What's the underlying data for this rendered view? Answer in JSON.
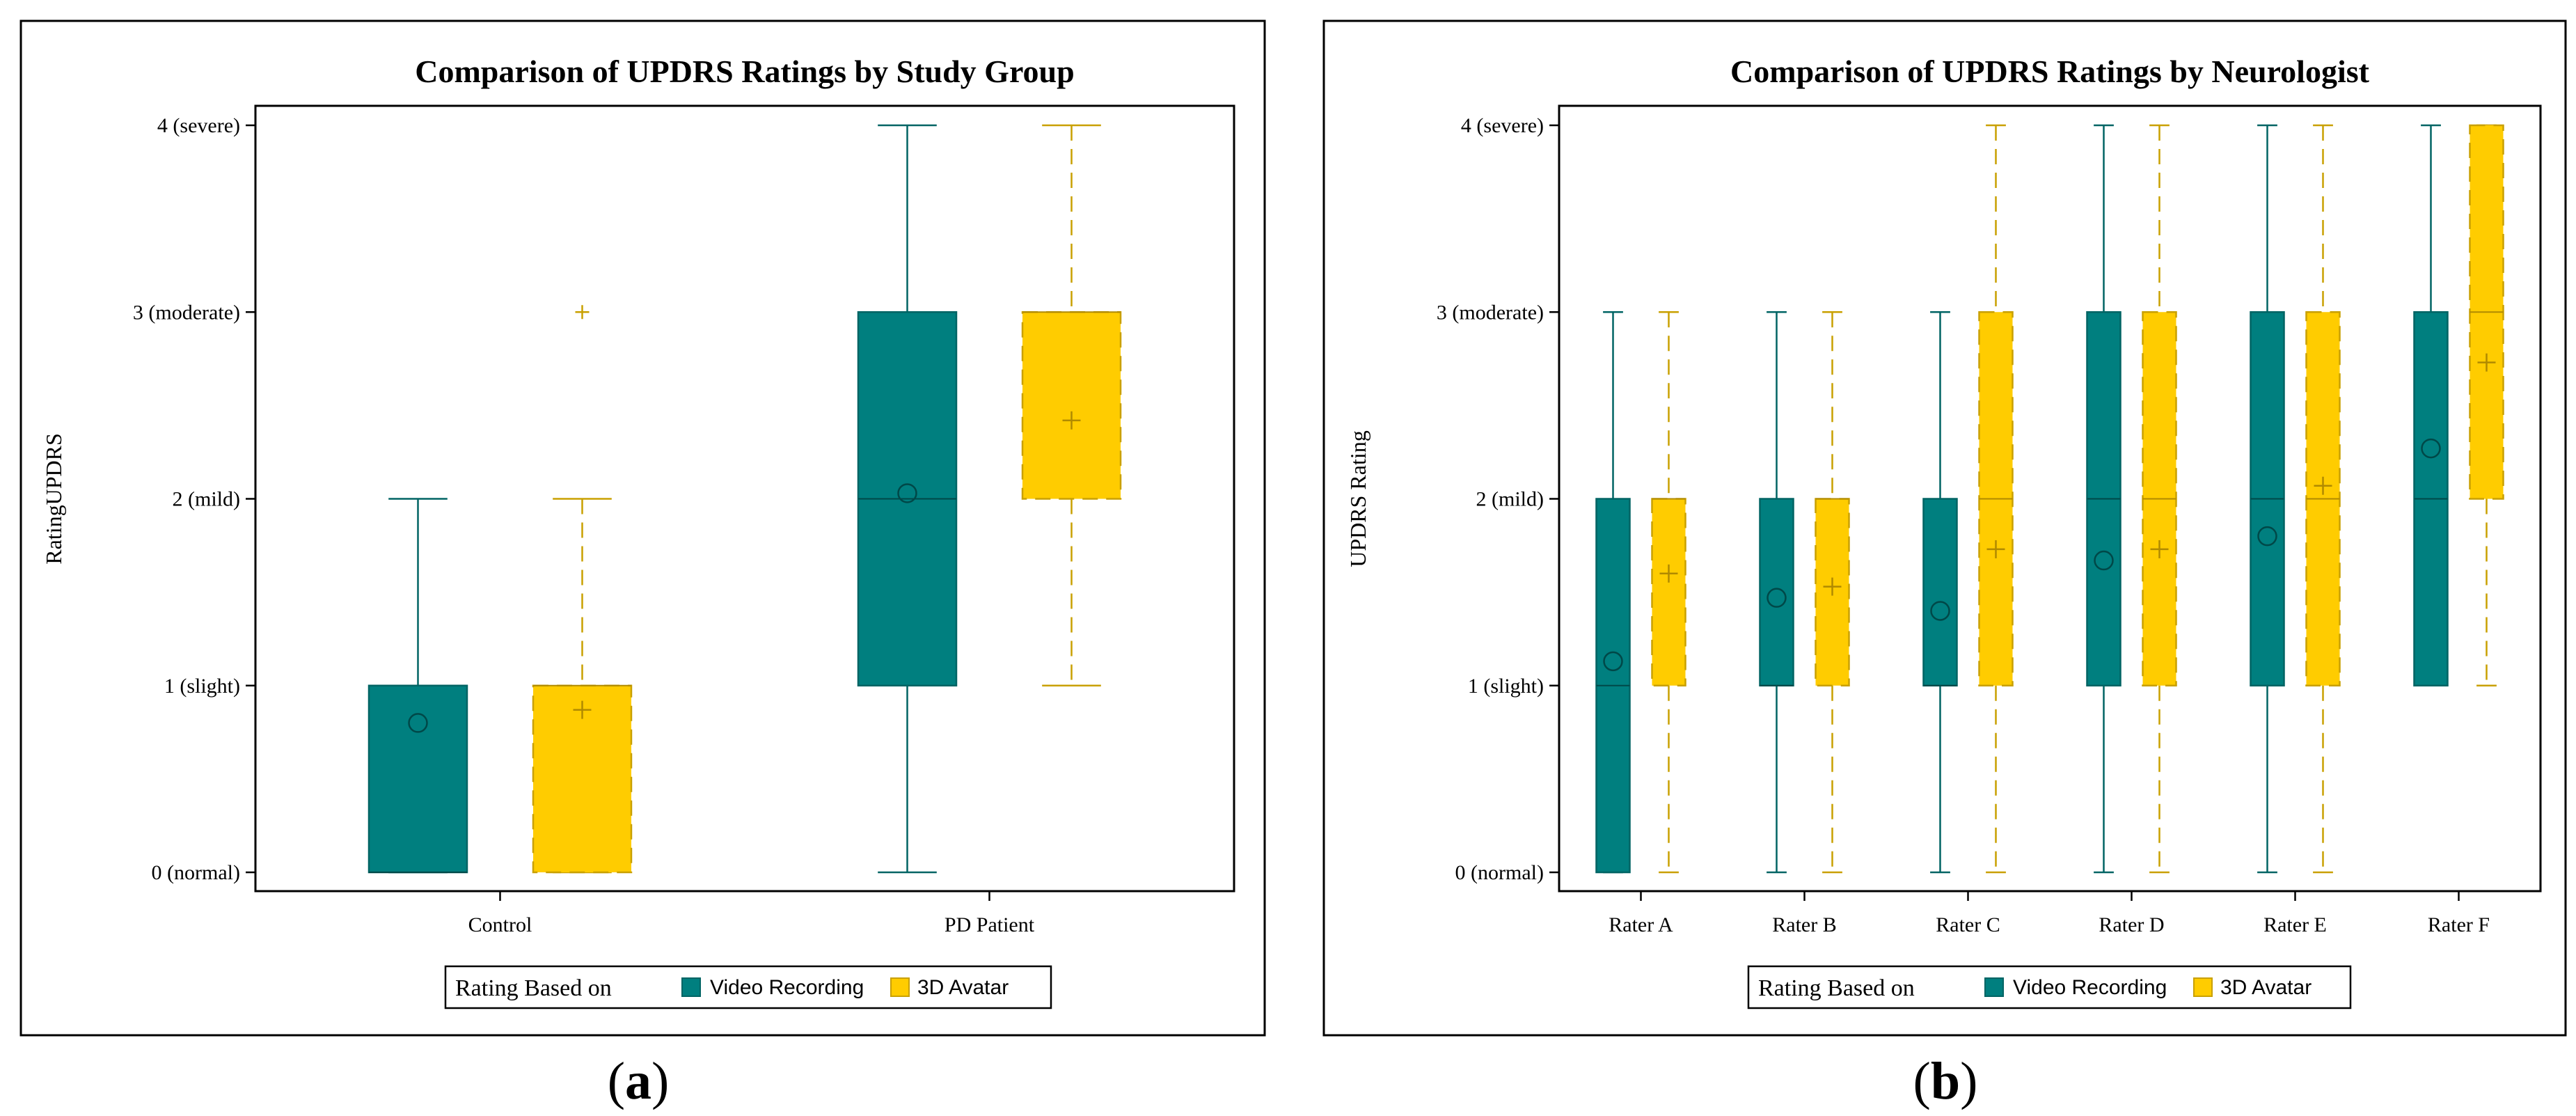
{
  "colors": {
    "video": "#007f7f",
    "avatar": "#ffcc00",
    "avatar_stroke": "#c9a000",
    "video_stroke": "#006464"
  },
  "chart_data": [
    {
      "type": "box",
      "id": "a",
      "caption_letter": "a",
      "title": "Comparison of UPDRS Ratings by Study Group",
      "ylabel": "RatingUPDRS",
      "xlabel": "",
      "ylim": [
        0,
        4
      ],
      "yticks": [
        0,
        1,
        2,
        3,
        4
      ],
      "ytick_labels": [
        "0 (normal)",
        "1 (slight)",
        "2 (mild)",
        "3 (moderate)",
        "4 (severe)"
      ],
      "categories": [
        "Control",
        "PD Patient"
      ],
      "legend_title": "Rating Based on",
      "series": [
        {
          "name": "Video Recording",
          "boxes": [
            {
              "min": 0,
              "q1": 0,
              "median": 0,
              "q3": 1,
              "max": 2,
              "mean": 0.8,
              "outliers": []
            },
            {
              "min": 0,
              "q1": 1,
              "median": 2,
              "q3": 3,
              "max": 4,
              "mean": 2.03,
              "outliers": []
            }
          ]
        },
        {
          "name": "3D Avatar",
          "boxes": [
            {
              "min": 0,
              "q1": 0,
              "median": 1,
              "q3": 1,
              "max": 2,
              "mean": 0.87,
              "outliers": [
                3
              ]
            },
            {
              "min": 1,
              "q1": 2,
              "median": 3,
              "q3": 3,
              "max": 4,
              "mean": 2.42,
              "outliers": []
            }
          ]
        }
      ]
    },
    {
      "type": "box",
      "id": "b",
      "caption_letter": "b",
      "title": "Comparison of UPDRS Ratings by Neurologist",
      "ylabel": "UPDRS Rating",
      "xlabel": "",
      "ylim": [
        0,
        4
      ],
      "yticks": [
        0,
        1,
        2,
        3,
        4
      ],
      "ytick_labels": [
        "0 (normal)",
        "1 (slight)",
        "2 (mild)",
        "3 (moderate)",
        "4 (severe)"
      ],
      "categories": [
        "Rater A",
        "Rater B",
        "Rater C",
        "Rater D",
        "Rater E",
        "Rater F"
      ],
      "legend_title": "Rating Based on",
      "series": [
        {
          "name": "Video Recording",
          "boxes": [
            {
              "min": 0,
              "q1": 0,
              "median": 1,
              "q3": 2,
              "max": 3,
              "mean": 1.13,
              "outliers": []
            },
            {
              "min": 0,
              "q1": 1,
              "median": 1,
              "q3": 2,
              "max": 3,
              "mean": 1.47,
              "outliers": []
            },
            {
              "min": 0,
              "q1": 1,
              "median": 1,
              "q3": 2,
              "max": 3,
              "mean": 1.4,
              "outliers": []
            },
            {
              "min": 0,
              "q1": 1,
              "median": 2,
              "q3": 3,
              "max": 4,
              "mean": 1.67,
              "outliers": []
            },
            {
              "min": 0,
              "q1": 1,
              "median": 2,
              "q3": 3,
              "max": 4,
              "mean": 1.8,
              "outliers": []
            },
            {
              "min": 1,
              "q1": 1,
              "median": 2,
              "q3": 3,
              "max": 4,
              "mean": 2.27,
              "outliers": []
            }
          ]
        },
        {
          "name": "3D Avatar",
          "boxes": [
            {
              "min": 0,
              "q1": 1,
              "median": 2,
              "q3": 2,
              "max": 3,
              "mean": 1.6,
              "outliers": []
            },
            {
              "min": 0,
              "q1": 1,
              "median": 2,
              "q3": 2,
              "max": 3,
              "mean": 1.53,
              "outliers": []
            },
            {
              "min": 0,
              "q1": 1,
              "median": 2,
              "q3": 3,
              "max": 4,
              "mean": 1.73,
              "outliers": []
            },
            {
              "min": 0,
              "q1": 1,
              "median": 2,
              "q3": 3,
              "max": 4,
              "mean": 1.73,
              "outliers": []
            },
            {
              "min": 0,
              "q1": 1,
              "median": 2,
              "q3": 3,
              "max": 4,
              "mean": 2.07,
              "outliers": []
            },
            {
              "min": 1,
              "q1": 2,
              "median": 3,
              "q3": 4,
              "max": 4,
              "mean": 2.73,
              "outliers": []
            }
          ]
        }
      ]
    }
  ]
}
